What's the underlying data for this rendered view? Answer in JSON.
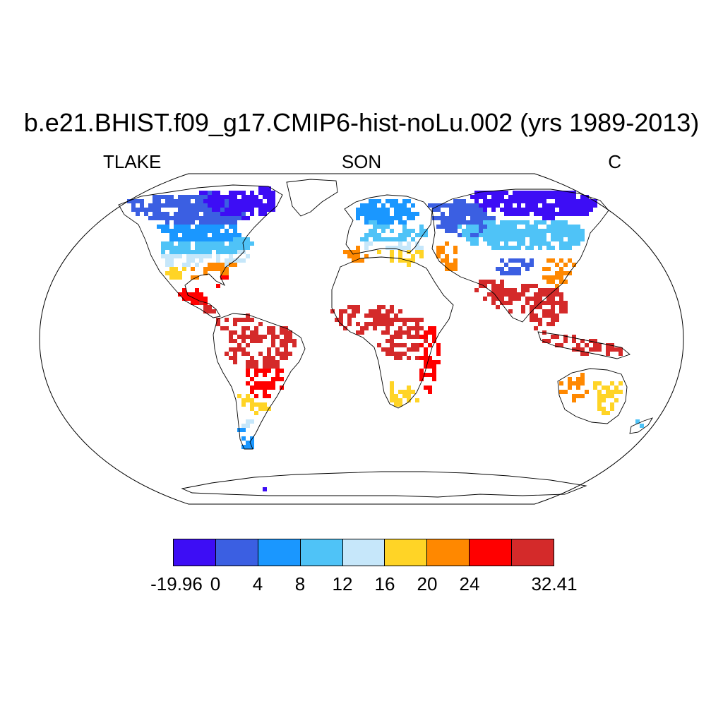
{
  "title": "b.e21.BHIST.f09_g17.CMIP6-hist-noLu.002 (yrs 1989-2013)",
  "left_label": "TLAKE",
  "center_label": "SON",
  "right_label": "C",
  "colorbar": {
    "colors": [
      "#3d0df5",
      "#3b5fe2",
      "#1a97ff",
      "#4fc3f7",
      "#c6e7fa",
      "#ffd426",
      "#ff8800",
      "#ff0000",
      "#d42a2a"
    ],
    "tick_labels": [
      "-19.96",
      "0",
      "4",
      "8",
      "12",
      "16",
      "20",
      "24",
      "32.41"
    ]
  },
  "map": {
    "projection": "robinson",
    "regions": [
      {
        "name": "arctic-canada",
        "color": "#3b5fe2"
      },
      {
        "name": "greenland-north",
        "color": "#3d0df5"
      },
      {
        "name": "canada-south",
        "color": "#1a97ff"
      },
      {
        "name": "canada-plains",
        "color": "#4fc3f7"
      },
      {
        "name": "usa-north",
        "color": "#c6e7fa"
      },
      {
        "name": "usa-southeast",
        "color": "#ff8800"
      },
      {
        "name": "usa-south",
        "color": "#ffd426"
      },
      {
        "name": "gulf-coast",
        "color": "#ff0000"
      },
      {
        "name": "mexico",
        "color": "#ff0000"
      },
      {
        "name": "central-america",
        "color": "#d42a2a"
      },
      {
        "name": "amazon",
        "color": "#d42a2a"
      },
      {
        "name": "brazil-south",
        "color": "#ff0000"
      },
      {
        "name": "argentina-north",
        "color": "#ffd426"
      },
      {
        "name": "argentina-middle",
        "color": "#c6e7fa"
      },
      {
        "name": "patagonia",
        "color": "#1a97ff"
      },
      {
        "name": "scandinavia",
        "color": "#1a97ff"
      },
      {
        "name": "europe-central",
        "color": "#4fc3f7"
      },
      {
        "name": "europe-south",
        "color": "#c6e7fa"
      },
      {
        "name": "iberia",
        "color": "#ff8800"
      },
      {
        "name": "mediterranean",
        "color": "#ffd426"
      },
      {
        "name": "caspian",
        "color": "#ff8800"
      },
      {
        "name": "russia-west",
        "color": "#3b5fe2"
      },
      {
        "name": "siberia",
        "color": "#3d0df5"
      },
      {
        "name": "siberia-south",
        "color": "#4fc3f7"
      },
      {
        "name": "tibet",
        "color": "#3b5fe2"
      },
      {
        "name": "china-east",
        "color": "#ff8800"
      },
      {
        "name": "india",
        "color": "#d42a2a"
      },
      {
        "name": "southeast-asia",
        "color": "#d42a2a"
      },
      {
        "name": "west-africa",
        "color": "#d42a2a"
      },
      {
        "name": "central-africa",
        "color": "#d42a2a"
      },
      {
        "name": "east-africa",
        "color": "#ff0000"
      },
      {
        "name": "southern-africa",
        "color": "#ffd426"
      },
      {
        "name": "indonesia",
        "color": "#d42a2a"
      },
      {
        "name": "australia-west",
        "color": "#ff8800"
      },
      {
        "name": "australia-east",
        "color": "#ffd426"
      },
      {
        "name": "new-zealand",
        "color": "#4fc3f7"
      },
      {
        "name": "antarctica-spots",
        "color": "#3d0df5"
      }
    ]
  }
}
